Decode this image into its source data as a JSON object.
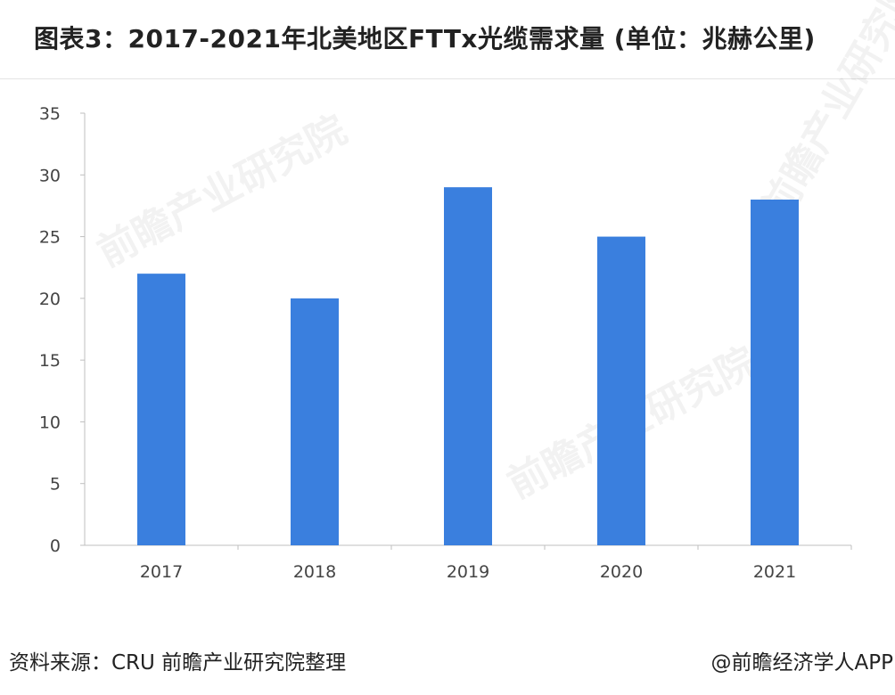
{
  "title": "图表3：2017-2021年北美地区FTTx光缆需求量 (单位：兆赫公里)",
  "source": "资料来源：CRU 前瞻产业研究院整理",
  "brand": "@前瞻经济学人APP",
  "watermark": "前瞻产业研究院",
  "chart_data": {
    "type": "bar",
    "title": "图表3：2017-2021年北美地区FTTx光缆需求量 (单位：兆赫公里)",
    "categories": [
      "2017",
      "2018",
      "2019",
      "2020",
      "2021"
    ],
    "values": [
      22,
      20,
      29,
      25,
      28
    ],
    "ylim": [
      0,
      35
    ],
    "yticks": [
      0,
      5,
      10,
      15,
      20,
      25,
      30,
      35
    ],
    "xlabel": "",
    "ylabel": "",
    "grid": false,
    "bar_color": "#3a7fde"
  }
}
